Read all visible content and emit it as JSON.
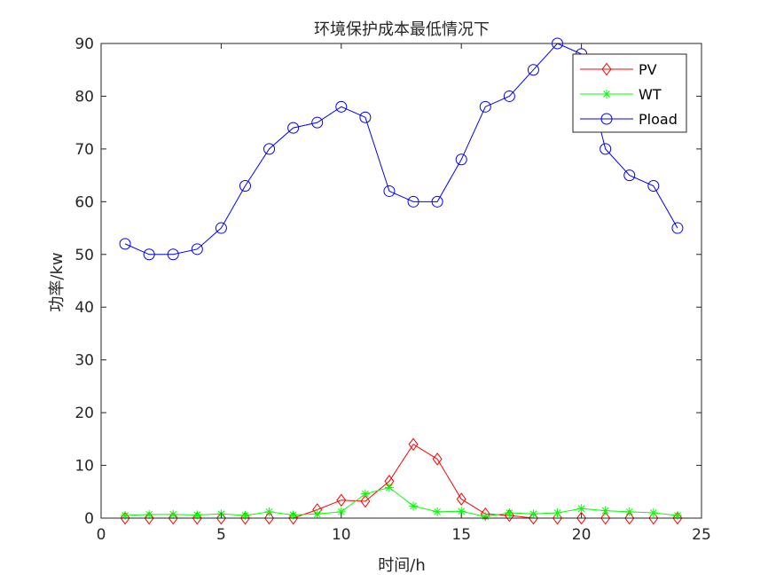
{
  "chart_data": {
    "type": "line",
    "title": "环境保护成本最低情况下",
    "xlabel": "时间/h",
    "ylabel": "功率/kw",
    "xlim": [
      0,
      25
    ],
    "ylim": [
      0,
      90
    ],
    "xticks": [
      0,
      5,
      10,
      15,
      20,
      25
    ],
    "yticks": [
      0,
      10,
      20,
      30,
      40,
      50,
      60,
      70,
      80,
      90
    ],
    "grid": false,
    "legend_position": "top-right",
    "x": [
      1,
      2,
      3,
      4,
      5,
      6,
      7,
      8,
      9,
      10,
      11,
      12,
      13,
      14,
      15,
      16,
      17,
      18,
      19,
      20,
      21,
      22,
      23,
      24
    ],
    "series": [
      {
        "name": "PV",
        "color": "#ff0000",
        "marker": "diamond",
        "values": [
          0,
          0,
          0,
          0,
          0,
          0,
          0,
          0,
          1.6,
          3.4,
          3.2,
          7.0,
          14.0,
          11.2,
          3.6,
          0.8,
          0.5,
          0,
          0,
          0,
          0,
          0,
          0,
          0
        ]
      },
      {
        "name": "WT",
        "color": "#00ff00",
        "marker": "asterisk",
        "values": [
          0.5,
          0.7,
          0.7,
          0.6,
          0.8,
          0.5,
          1.2,
          0.6,
          0.8,
          1.2,
          4.6,
          5.8,
          2.3,
          1.2,
          1.3,
          0.3,
          1.0,
          0.8,
          1.0,
          1.8,
          1.4,
          1.2,
          1.0,
          0.5
        ]
      },
      {
        "name": "Pload",
        "color": "#0000ff",
        "marker": "circle",
        "values": [
          52,
          50,
          50,
          51,
          55,
          63,
          70,
          74,
          75,
          78,
          76,
          62,
          60,
          60,
          68,
          78,
          80,
          85,
          90,
          88,
          70,
          65,
          63,
          55
        ]
      }
    ]
  }
}
